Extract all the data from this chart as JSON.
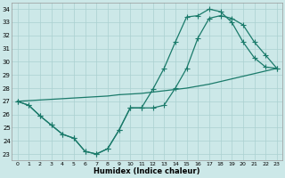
{
  "xlabel": "Humidex (Indice chaleur)",
  "bg_color": "#cce8e8",
  "line_color": "#1a7a6a",
  "grid_color": "#aad0d0",
  "xlim": [
    -0.5,
    23.5
  ],
  "ylim": [
    22.5,
    34.5
  ],
  "xticks": [
    0,
    1,
    2,
    3,
    4,
    5,
    6,
    7,
    8,
    9,
    10,
    11,
    12,
    13,
    14,
    15,
    16,
    17,
    18,
    19,
    20,
    21,
    22,
    23
  ],
  "yticks": [
    23,
    24,
    25,
    26,
    27,
    28,
    29,
    30,
    31,
    32,
    33,
    34
  ],
  "series": [
    {
      "x": [
        0,
        1,
        2,
        3,
        4,
        5,
        6,
        7,
        8,
        9,
        10,
        11,
        12,
        13,
        14,
        15,
        16,
        17,
        18,
        19,
        20,
        21,
        22,
        23
      ],
      "y": [
        27.0,
        26.7,
        25.9,
        25.2,
        24.5,
        24.2,
        23.2,
        23.0,
        23.4,
        24.8,
        26.5,
        26.5,
        27.9,
        29.5,
        31.5,
        33.4,
        33.5,
        34.0,
        33.8,
        33.0,
        31.5,
        30.3,
        29.6,
        29.5
      ],
      "marker": true
    },
    {
      "x": [
        0,
        1,
        2,
        3,
        4,
        5,
        6,
        7,
        8,
        9,
        10,
        11,
        12,
        13,
        14,
        15,
        16,
        17,
        18,
        19,
        20,
        21,
        22,
        23
      ],
      "y": [
        27.0,
        26.7,
        25.9,
        25.2,
        24.5,
        24.2,
        23.2,
        23.0,
        23.4,
        24.8,
        26.5,
        26.5,
        26.5,
        26.7,
        28.0,
        29.5,
        31.8,
        33.3,
        33.5,
        33.3,
        32.8,
        31.5,
        30.5,
        29.5
      ],
      "marker": true
    },
    {
      "x": [
        0,
        1,
        2,
        3,
        4,
        5,
        6,
        7,
        8,
        9,
        10,
        11,
        12,
        13,
        14,
        15,
        16,
        17,
        18,
        19,
        20,
        21,
        22,
        23
      ],
      "y": [
        27.0,
        27.05,
        27.1,
        27.15,
        27.2,
        27.25,
        27.3,
        27.35,
        27.4,
        27.5,
        27.55,
        27.6,
        27.7,
        27.8,
        27.9,
        28.0,
        28.15,
        28.3,
        28.5,
        28.7,
        28.9,
        29.1,
        29.3,
        29.5
      ],
      "marker": false
    }
  ]
}
